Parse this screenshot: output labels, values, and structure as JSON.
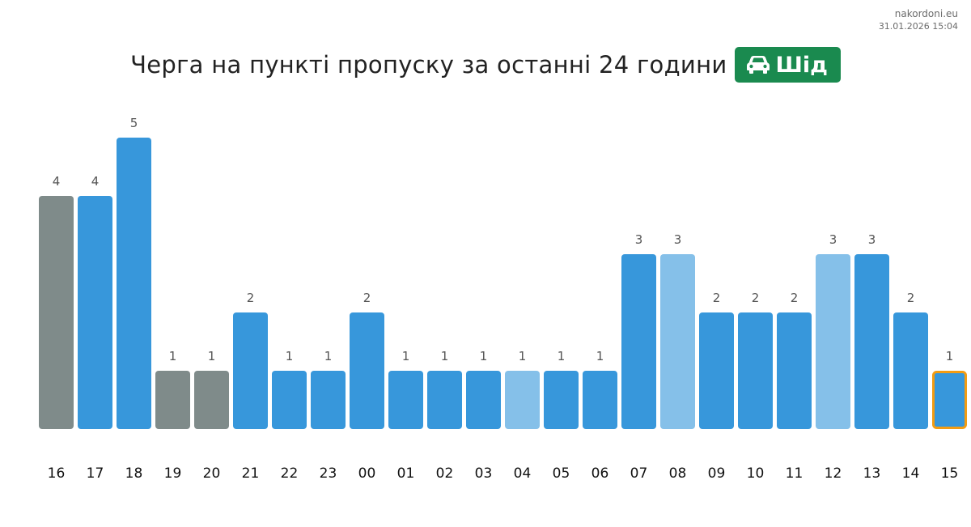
{
  "source": {
    "site": "nakordoni.eu",
    "timestamp": "31.01.2026 15:04"
  },
  "title": "Черга на пункті пропуску за останні 24 години",
  "badge": {
    "icon": "car-icon",
    "label": "Шід",
    "color": "#1a8a4f"
  },
  "colors": {
    "normal": "#3797db",
    "light": "#85c0e9",
    "gray": "#7f8b8a",
    "highlight_border": "#f39c12",
    "value_label": "#555555",
    "hour_label": "#111111"
  },
  "chart_data": {
    "type": "bar",
    "categories": [
      "16",
      "17",
      "18",
      "19",
      "20",
      "21",
      "22",
      "23",
      "00",
      "01",
      "02",
      "03",
      "04",
      "05",
      "06",
      "07",
      "08",
      "09",
      "10",
      "11",
      "12",
      "13",
      "14",
      "15"
    ],
    "values": [
      4,
      4,
      5,
      1,
      1,
      2,
      1,
      1,
      2,
      1,
      1,
      1,
      1,
      1,
      1,
      3,
      3,
      2,
      2,
      2,
      3,
      3,
      2,
      1
    ],
    "bar_styles": [
      "gray",
      "normal",
      "normal",
      "gray",
      "gray",
      "normal",
      "normal",
      "normal",
      "normal",
      "normal",
      "normal",
      "normal",
      "light",
      "normal",
      "normal",
      "normal",
      "light",
      "normal",
      "normal",
      "normal",
      "light",
      "normal",
      "normal",
      "normal"
    ],
    "highlighted_category": "15",
    "ylim": [
      0,
      5
    ],
    "grid": false,
    "title": "Черга на пункті пропуску за останні 24 години",
    "xlabel": "",
    "ylabel": ""
  }
}
